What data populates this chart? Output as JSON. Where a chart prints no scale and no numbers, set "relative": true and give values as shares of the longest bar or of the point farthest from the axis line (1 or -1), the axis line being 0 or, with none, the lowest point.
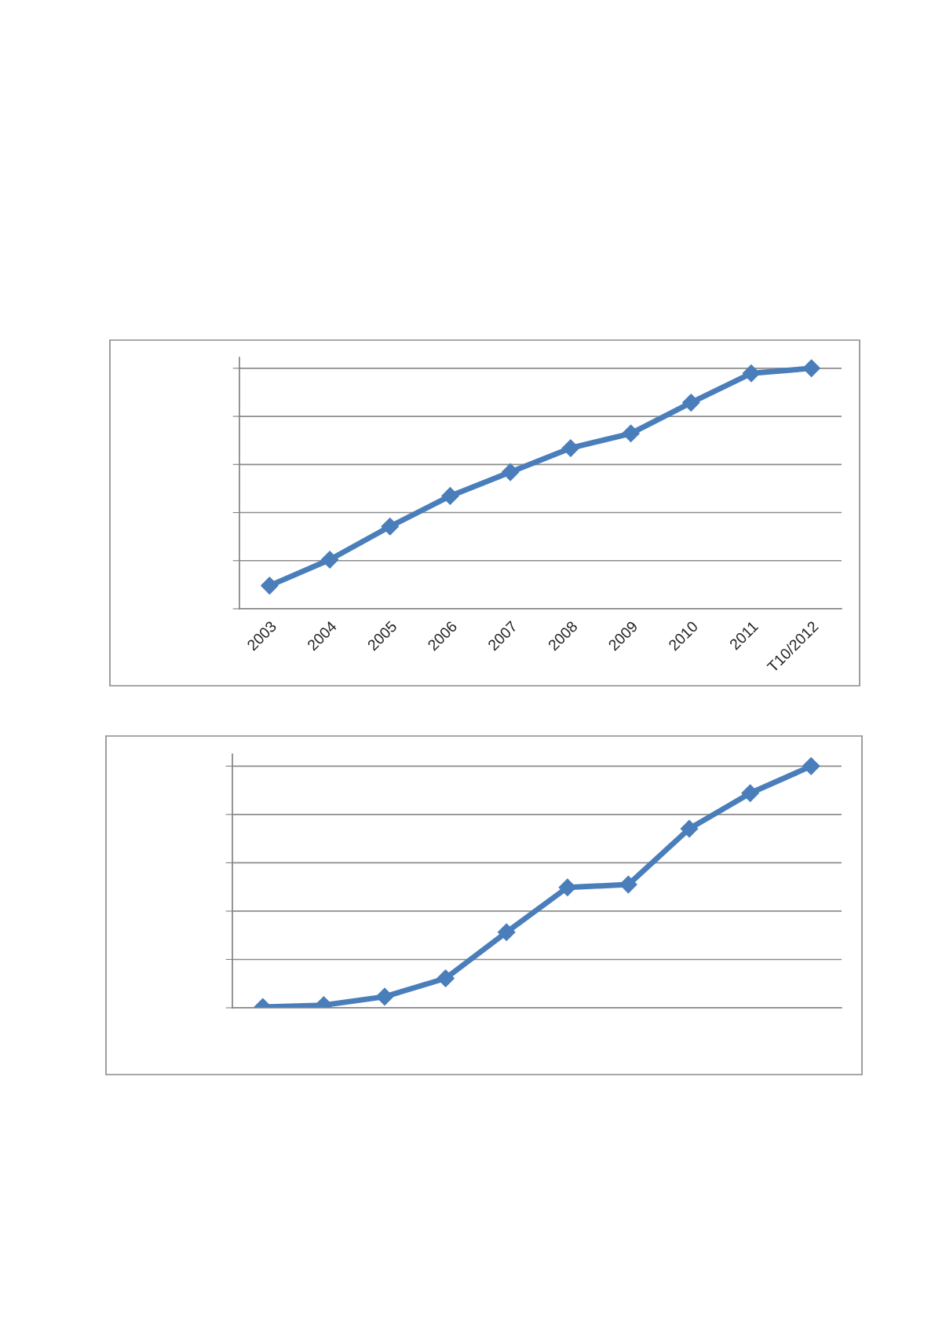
{
  "chart_data": [
    {
      "type": "line",
      "relative": true,
      "categories": [
        "2003",
        "2004",
        "2005",
        "2006",
        "2007",
        "2008",
        "2009",
        "2010",
        "2011",
        "T10/2012"
      ],
      "series": [
        {
          "color": "#4a7ebb",
          "values": [
            0.096,
            0.204,
            0.342,
            0.469,
            0.568,
            0.668,
            0.729,
            0.857,
            0.979,
            1
          ]
        }
      ],
      "marker": "diamond",
      "line_style": "solid",
      "grid": "y"
    },
    {
      "type": "line",
      "relative": true,
      "categories": [
        null,
        null,
        null,
        null,
        null,
        null,
        null,
        null,
        null,
        null
      ],
      "series": [
        {
          "color": "#4a7ebb",
          "values": [
            0.003,
            0.011,
            0.046,
            0.122,
            0.313,
            0.498,
            0.51,
            0.741,
            0.888,
            1
          ]
        }
      ],
      "marker": "diamond",
      "line_style": "solid",
      "grid": "y"
    }
  ]
}
